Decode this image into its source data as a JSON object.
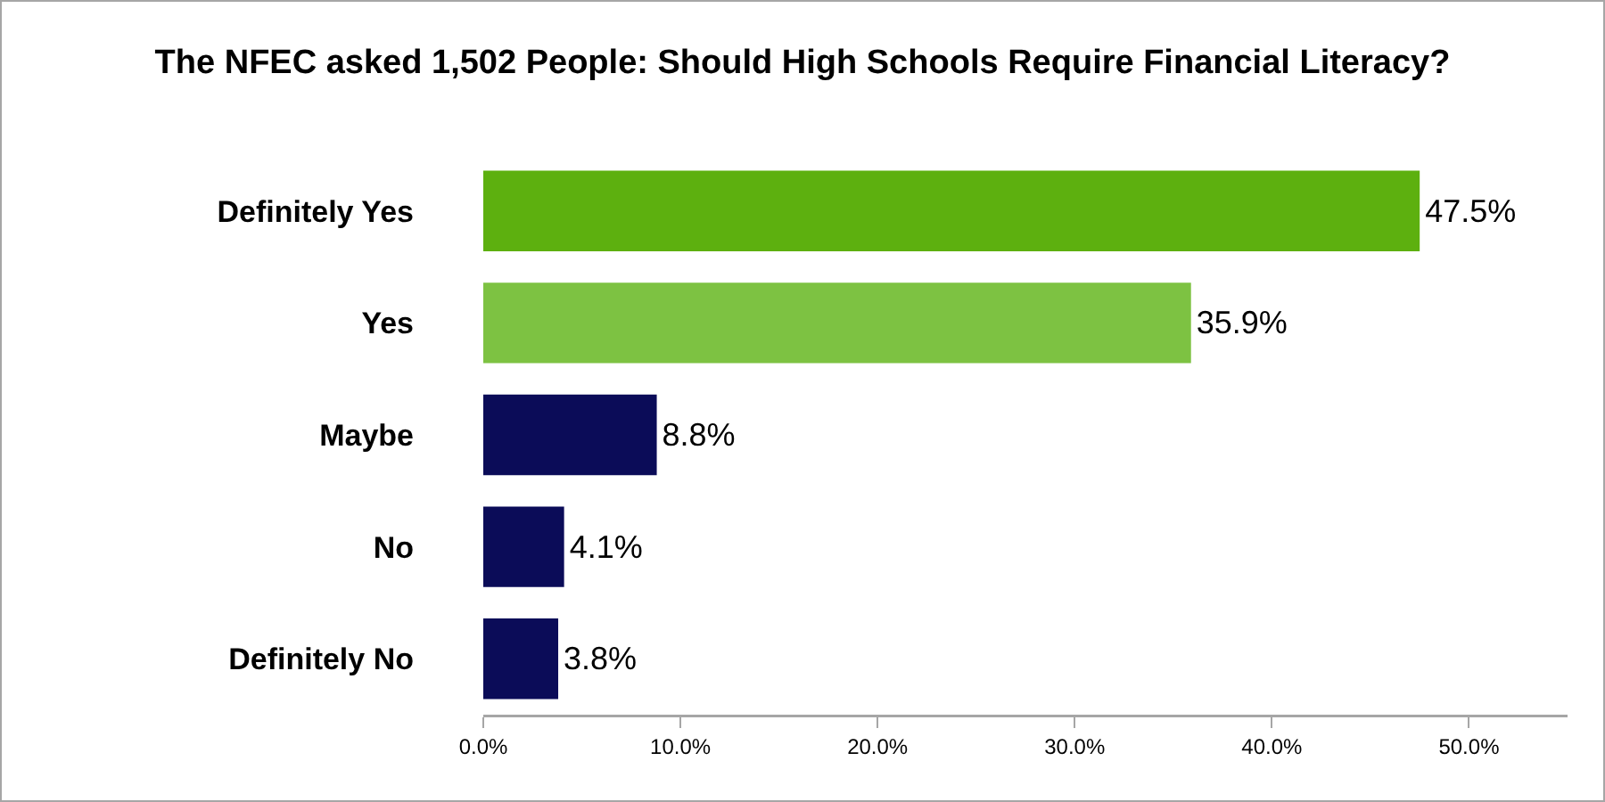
{
  "chart_data": {
    "type": "bar",
    "orientation": "horizontal",
    "title": "The NFEC asked 1,502 People: Should High Schools Require Financial Literacy?",
    "categories": [
      "Definitely Yes",
      "Yes",
      "Maybe",
      "No",
      "Definitely No"
    ],
    "values": [
      47.5,
      35.9,
      8.8,
      4.1,
      3.8
    ],
    "colors": [
      "#5db00f",
      "#7dc242",
      "#0b0c58",
      "#0b0c58",
      "#0b0c58"
    ],
    "value_labels": [
      "47.5%",
      "35.9%",
      "8.8%",
      "4.1%",
      "3.8%"
    ],
    "xlim": [
      0,
      55
    ],
    "xticks": [
      {
        "value": 0,
        "label": "0.0%"
      },
      {
        "value": 10,
        "label": "10.0%"
      },
      {
        "value": 20,
        "label": "20.0%"
      },
      {
        "value": 30,
        "label": "30.0%"
      },
      {
        "value": 40,
        "label": "40.0%"
      },
      {
        "value": 50,
        "label": "50.0%"
      }
    ]
  }
}
